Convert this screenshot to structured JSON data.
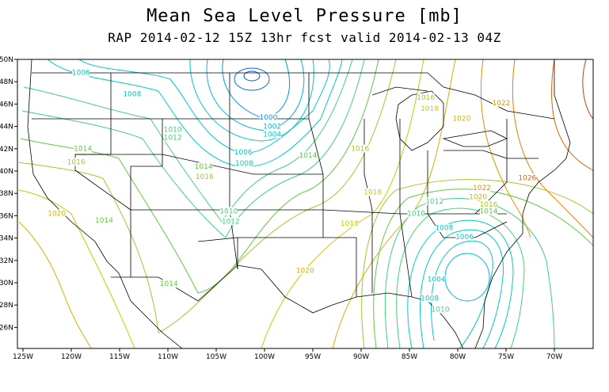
{
  "title": "Mean Sea Level Pressure [mb]",
  "subtitle": "RAP 2014-02-12 15Z 13hr fcst valid 2014-02-13 04Z",
  "x_ticks": [
    "125W",
    "120W",
    "115W",
    "110W",
    "105W",
    "100W",
    "95W",
    "90W",
    "85W",
    "80W",
    "75W",
    "70W"
  ],
  "y_ticks": [
    "50N",
    "48N",
    "46N",
    "44N",
    "42N",
    "40N",
    "38N",
    "36N",
    "34N",
    "32N",
    "30N",
    "28N",
    "26N"
  ],
  "contour_labels": [
    {
      "text": "1006",
      "color": "#00c8c8",
      "lon": -119,
      "lat": 48.6
    },
    {
      "text": "1008",
      "color": "#00c8c8",
      "lon": -113.7,
      "lat": 46.7
    },
    {
      "text": "1010",
      "color": "#40d080",
      "lon": -109.5,
      "lat": 43.5
    },
    {
      "text": "1012",
      "color": "#40d080",
      "lon": -109.5,
      "lat": 42.8
    },
    {
      "text": "1014",
      "color": "#60c840",
      "lon": -118.8,
      "lat": 41.8
    },
    {
      "text": "1016",
      "color": "#a0c828",
      "lon": -119.5,
      "lat": 40.6
    },
    {
      "text": "1014",
      "color": "#60c840",
      "lon": -106.3,
      "lat": 40.2
    },
    {
      "text": "1016",
      "color": "#a0c828",
      "lon": -106.2,
      "lat": 39.3
    },
    {
      "text": "1000",
      "color": "#0096e0",
      "lon": -99.6,
      "lat": 44.6
    },
    {
      "text": "1002",
      "color": "#00b4e0",
      "lon": -99.2,
      "lat": 43.8
    },
    {
      "text": "1004",
      "color": "#00c8c8",
      "lon": -99.2,
      "lat": 43.1
    },
    {
      "text": "1006",
      "color": "#00c8c8",
      "lon": -102.2,
      "lat": 41.5
    },
    {
      "text": "1008",
      "color": "#00c8c8",
      "lon": -102.1,
      "lat": 40.5
    },
    {
      "text": "1014",
      "color": "#60c840",
      "lon": -95.5,
      "lat": 41.2
    },
    {
      "text": "1016",
      "color": "#a0c828",
      "lon": -90.1,
      "lat": 41.8
    },
    {
      "text": "1010",
      "color": "#40d080",
      "lon": -103.7,
      "lat": 36.2
    },
    {
      "text": "1012",
      "color": "#40d080",
      "lon": -103.5,
      "lat": 35.3
    },
    {
      "text": "1020",
      "color": "#d4b000",
      "lon": -121.5,
      "lat": 36
    },
    {
      "text": "1014",
      "color": "#60c840",
      "lon": -116.6,
      "lat": 35.4
    },
    {
      "text": "1018",
      "color": "#c8c800",
      "lon": -91.2,
      "lat": 35.1
    },
    {
      "text": "1018",
      "color": "#c8c800",
      "lon": -88.8,
      "lat": 37.9
    },
    {
      "text": "1020",
      "color": "#d4b000",
      "lon": -95.8,
      "lat": 30.9
    },
    {
      "text": "1014",
      "color": "#60c840",
      "lon": -109.9,
      "lat": 29.7
    },
    {
      "text": "1016",
      "color": "#a0c828",
      "lon": -83.3,
      "lat": 46.4
    },
    {
      "text": "1018",
      "color": "#c8c800",
      "lon": -82.9,
      "lat": 45.4
    },
    {
      "text": "1020",
      "color": "#d4b000",
      "lon": -79.6,
      "lat": 44.5
    },
    {
      "text": "1022",
      "color": "#d49600",
      "lon": -75.5,
      "lat": 45.9
    },
    {
      "text": "1026",
      "color": "#d86400",
      "lon": -72.8,
      "lat": 39.2
    },
    {
      "text": "1022",
      "color": "#d49600",
      "lon": -77.5,
      "lat": 38.3
    },
    {
      "text": "1020",
      "color": "#d4b000",
      "lon": -77.9,
      "lat": 37.5
    },
    {
      "text": "1016",
      "color": "#a0c828",
      "lon": -76.8,
      "lat": 36.8
    },
    {
      "text": "1014",
      "color": "#60c840",
      "lon": -76.8,
      "lat": 36.2
    },
    {
      "text": "1012",
      "color": "#40d080",
      "lon": -82.4,
      "lat": 37.1
    },
    {
      "text": "1010",
      "color": "#40d080",
      "lon": -84.3,
      "lat": 36
    },
    {
      "text": "1008",
      "color": "#00c8c8",
      "lon": -81.4,
      "lat": 34.7
    },
    {
      "text": "1006",
      "color": "#00c8c8",
      "lon": -79.3,
      "lat": 33.9
    },
    {
      "text": "1004",
      "color": "#00c8c8",
      "lon": -82.2,
      "lat": 30.1
    },
    {
      "text": "1008",
      "color": "#00c8c8",
      "lon": -82.9,
      "lat": 28.4
    },
    {
      "text": "1010",
      "color": "#40d080",
      "lon": -81.8,
      "lat": 27.4
    }
  ]
}
